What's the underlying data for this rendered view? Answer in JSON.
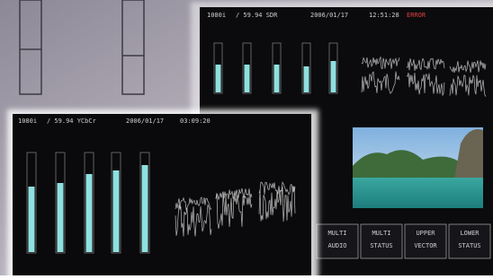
{
  "back_screen": {
    "format": "1080i",
    "rate": "/ 59.94 SDR",
    "date": "2006/01/17",
    "time": "12:51:28",
    "status": "ERROR"
  },
  "front_screen": {
    "format": "1080i",
    "rate": "/ 59.94 YCbCr",
    "date": "2006/01/17",
    "time": "03:09:20"
  },
  "buttons": [
    {
      "line1": "MULTI",
      "line2": "AUDIO"
    },
    {
      "line1": "MULTI",
      "line2": "STATUS"
    },
    {
      "line1": "UPPER",
      "line2": "VECTOR"
    },
    {
      "line1": "LOWER",
      "line2": "STATUS"
    }
  ]
}
